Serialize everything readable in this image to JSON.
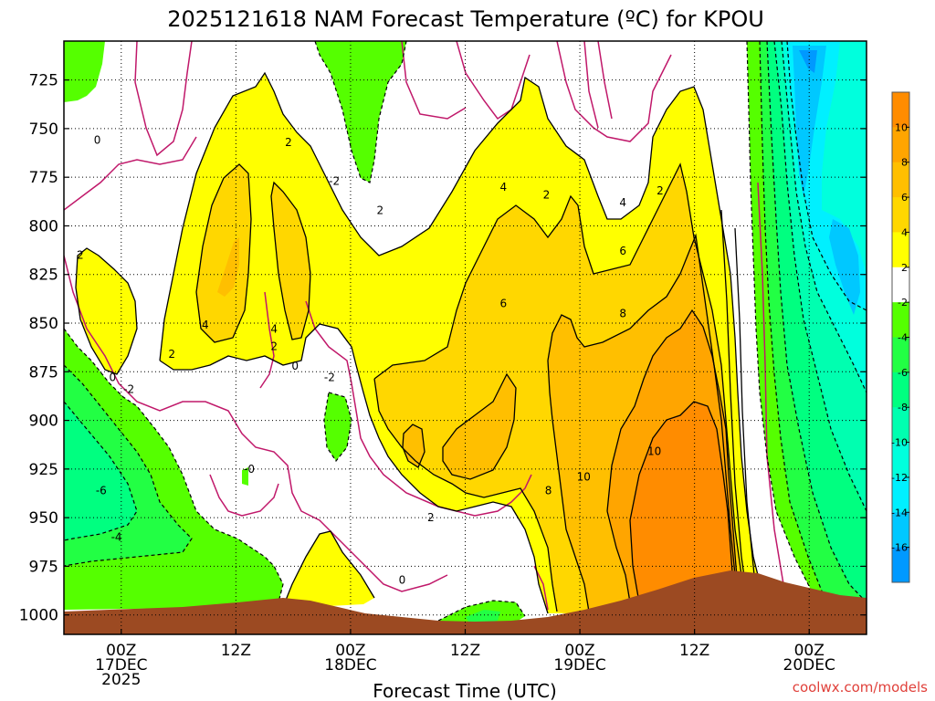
{
  "chart_data": {
    "type": "heatmap",
    "title": "2025121618 NAM Forecast Temperature (ºC) for KPOU",
    "xlabel": "Forecast Time (UTC)",
    "ylabel": "",
    "y_axis": {
      "ticks": [
        "725",
        "750",
        "775",
        "800",
        "825",
        "850",
        "875",
        "900",
        "925",
        "950",
        "975",
        "1000"
      ],
      "values": [
        725,
        750,
        775,
        800,
        825,
        850,
        875,
        900,
        925,
        950,
        975,
        1000
      ],
      "range": [
        705,
        1010
      ],
      "reversed": true
    },
    "x_axis": {
      "ticks": [
        {
          "hour": 6,
          "lines": [
            "00Z",
            "17DEC",
            "2025"
          ]
        },
        {
          "hour": 18,
          "lines": [
            "12Z"
          ]
        },
        {
          "hour": 30,
          "lines": [
            "00Z",
            "18DEC"
          ]
        },
        {
          "hour": 42,
          "lines": [
            "12Z"
          ]
        },
        {
          "hour": 54,
          "lines": [
            "00Z",
            "19DEC"
          ]
        },
        {
          "hour": 66,
          "lines": [
            "12Z"
          ]
        },
        {
          "hour": 78,
          "lines": [
            "00Z",
            "20DEC"
          ]
        }
      ],
      "range": [
        0,
        84
      ]
    },
    "grid": true,
    "colorbar": {
      "placement": "right",
      "ticks": [
        "10",
        "8",
        "6",
        "4",
        "2",
        "-2",
        "-4",
        "-6",
        "-8",
        "-10",
        "-12",
        "-14",
        "-16"
      ],
      "bins": [
        {
          "range": [
            10,
            12
          ],
          "color": "#ff8c00"
        },
        {
          "range": [
            8,
            10
          ],
          "color": "#ffa500"
        },
        {
          "range": [
            6,
            8
          ],
          "color": "#ffbf00"
        },
        {
          "range": [
            4,
            6
          ],
          "color": "#ffd700"
        },
        {
          "range": [
            2,
            4
          ],
          "color": "#ffff00"
        },
        {
          "range": [
            -2,
            2
          ],
          "color": "#ffffff"
        },
        {
          "range": [
            -4,
            -2
          ],
          "color": "#55ff00"
        },
        {
          "range": [
            -6,
            -4
          ],
          "color": "#22ff44"
        },
        {
          "range": [
            -8,
            -6
          ],
          "color": "#00ff80"
        },
        {
          "range": [
            -10,
            -8
          ],
          "color": "#00ffb0"
        },
        {
          "range": [
            -12,
            -10
          ],
          "color": "#00ffdd"
        },
        {
          "range": [
            -14,
            -12
          ],
          "color": "#00f0ff"
        },
        {
          "range": [
            -16,
            -14
          ],
          "color": "#00c8ff"
        },
        {
          "range": [
            -18,
            -16
          ],
          "color": "#0099ff"
        }
      ]
    },
    "contour_labels": [
      {
        "text": "0",
        "hour": 3.5,
        "p": 756
      },
      {
        "text": "2",
        "hour": 23.5,
        "p": 757
      },
      {
        "text": "-2",
        "hour": 28.3,
        "p": 777
      },
      {
        "text": "2",
        "hour": 33.1,
        "p": 792
      },
      {
        "text": "4",
        "hour": 46,
        "p": 780
      },
      {
        "text": "2",
        "hour": 50.5,
        "p": 784
      },
      {
        "text": "4",
        "hour": 58.5,
        "p": 788
      },
      {
        "text": "2",
        "hour": 62.4,
        "p": 782
      },
      {
        "text": "2",
        "hour": 1.7,
        "p": 815
      },
      {
        "text": "6",
        "hour": 58.5,
        "p": 813
      },
      {
        "text": "6",
        "hour": 46,
        "p": 840
      },
      {
        "text": "8",
        "hour": 58.5,
        "p": 845
      },
      {
        "text": "4",
        "hour": 14.8,
        "p": 851
      },
      {
        "text": "4",
        "hour": 22,
        "p": 853
      },
      {
        "text": "2",
        "hour": 11.3,
        "p": 866
      },
      {
        "text": "2",
        "hour": 22,
        "p": 862
      },
      {
        "text": "0",
        "hour": 24.2,
        "p": 872
      },
      {
        "text": "0",
        "hour": 5.1,
        "p": 878
      },
      {
        "text": "-2",
        "hour": 27.8,
        "p": 878
      },
      {
        "text": "-2",
        "hour": 6.8,
        "p": 884
      },
      {
        "text": "10",
        "hour": 61.8,
        "p": 916
      },
      {
        "text": "-0",
        "hour": 19.4,
        "p": 925
      },
      {
        "text": "10",
        "hour": 54.4,
        "p": 929
      },
      {
        "text": "8",
        "hour": 50.7,
        "p": 936
      },
      {
        "text": "-6",
        "hour": 3.9,
        "p": 936
      },
      {
        "text": "2",
        "hour": 38.4,
        "p": 950
      },
      {
        "text": "-4",
        "hour": 5.5,
        "p": 960
      },
      {
        "text": "0",
        "hour": 35.4,
        "p": 982
      }
    ]
  },
  "footer": {
    "credit": "coolwx.com/models"
  }
}
